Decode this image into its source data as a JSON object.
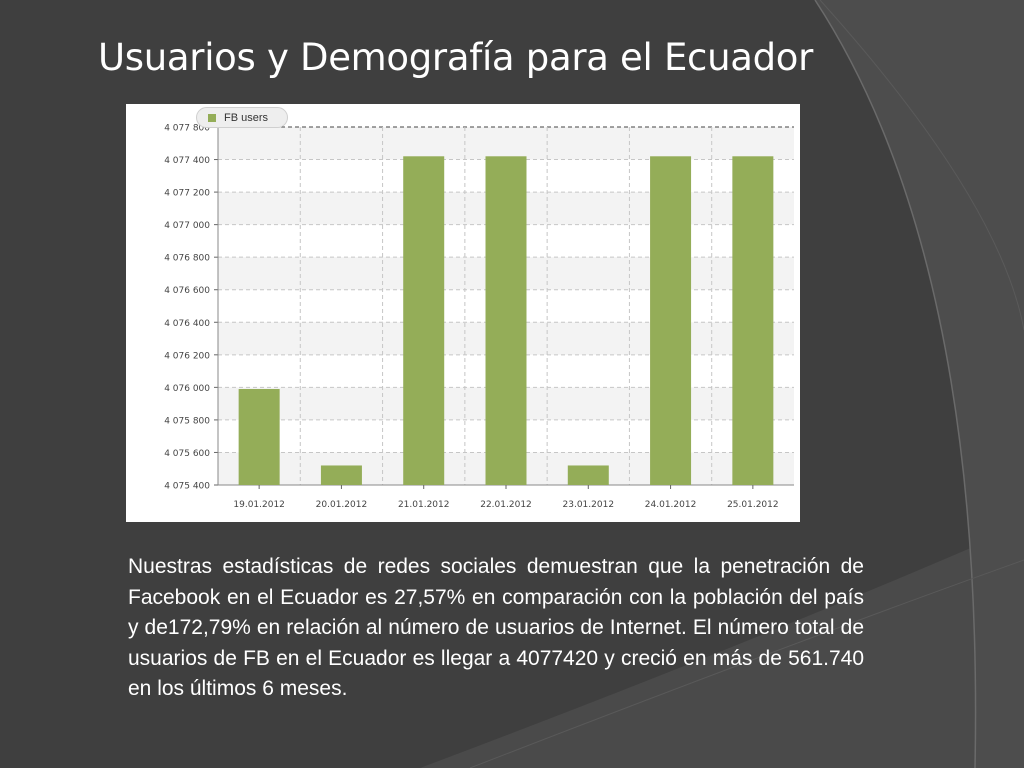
{
  "slide": {
    "title": "Usuarios y Demografía para el Ecuador",
    "body": "Nuestras estadísticas de redes sociales demuestran que la penetración de Facebook en el Ecuador es 27,57% en comparación con la población del país y de172,79% en relación al número de usuarios de Internet. El número total de usuarios de FB en el Ecuador es llegar a 4077420 y creció en más de 561.740 en los últimos 6 meses."
  },
  "colors": {
    "background": "#3f3f3f",
    "bar": "#94ad58",
    "text": "#ffffff"
  },
  "chart_data": {
    "type": "bar",
    "legend": "FB users",
    "legend_position": "top-left",
    "grid": true,
    "categories": [
      "19.01.2012",
      "20.01.2012",
      "21.01.2012",
      "22.01.2012",
      "23.01.2012",
      "24.01.2012",
      "25.01.2012"
    ],
    "series": [
      {
        "name": "FB users",
        "values": [
          4075990,
          4075520,
          4077420,
          4077420,
          4075520,
          4077420,
          4077420
        ]
      }
    ],
    "y_ticks": [
      "4 077 800",
      "4 077 400",
      "4 077 200",
      "4 077 000",
      "4 076 800",
      "4 076 600",
      "4 076 400",
      "4 076 200",
      "4 076 000",
      "4 075 800",
      "4 075 600",
      "4 075 400"
    ],
    "ylim": [
      4075400,
      4077600
    ]
  }
}
